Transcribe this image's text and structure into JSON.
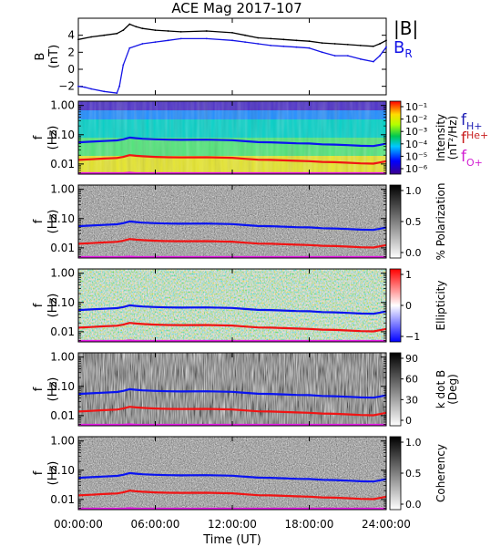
{
  "figure": {
    "title": "ACE Mag 2017-107"
  },
  "time_axis": {
    "label": "Time (UT)",
    "tick_labels": [
      "00:00:00",
      "06:00:00",
      "12:00:00",
      "18:00:00",
      "24:00:00"
    ],
    "tick_hours": [
      0,
      6,
      12,
      18,
      24
    ],
    "xlim_hours": [
      0,
      24
    ]
  },
  "freq_axis": {
    "label_line1": "f",
    "label_line2": "(Hz)",
    "tick_labels": [
      "1.00",
      "0.10",
      "0.01"
    ],
    "tick_values": [
      1.0,
      0.1,
      0.01
    ],
    "ylim_hz": [
      0.0045,
      1.4
    ],
    "scale": "log"
  },
  "legend": {
    "mag_total": "|B|",
    "mag_radial": "B",
    "mag_radial_sub": "R",
    "fh": "f",
    "fh_sub": "H+",
    "fhe": "f",
    "fhe_sub": "He+",
    "fo": "f",
    "fo_sub": "O+"
  },
  "colors": {
    "total": "#000000",
    "radial": "#1414e6",
    "fH": "#0a14f0",
    "fHe": "#f01414",
    "fO": "#e619e6",
    "legend_fh": "#1e1eb4",
    "legend_fhe": "#c81e1e",
    "legend_fo": "#d21ed2"
  },
  "panels": [
    {
      "key": "psd",
      "colorbar_label": "Intensity",
      "colorbar_label2": "(nT²/Hz)",
      "colorbar_ticks": [
        "10⁻¹",
        "10⁻²",
        "10⁻³",
        "10⁻⁴",
        "10⁻⁵",
        "10⁻⁶"
      ]
    },
    {
      "key": "pol",
      "colorbar_label": "% Polarization",
      "colorbar_label2": "",
      "colorbar_ticks": [
        "1.0",
        "0.5",
        "0.0"
      ]
    },
    {
      "key": "ell",
      "colorbar_label": "Ellipticity",
      "colorbar_label2": "",
      "colorbar_ticks": [
        "1",
        "0",
        "−1"
      ]
    },
    {
      "key": "kdb",
      "colorbar_label": "k dot B",
      "colorbar_label2": "(Deg)",
      "colorbar_ticks": [
        "90",
        "60",
        "30",
        "0"
      ]
    },
    {
      "key": "coh",
      "colorbar_label": "Coherency",
      "colorbar_label2": "",
      "colorbar_ticks": [
        "1.0",
        "0.5",
        "0.0"
      ]
    }
  ],
  "chart_data": [
    {
      "type": "line",
      "title": "ACE Mag 2017-107",
      "ylabel": "B (nT)",
      "ylim": [
        -3,
        6
      ],
      "yticks": [
        -2,
        0,
        2,
        4
      ],
      "xlim_hours": [
        0,
        24
      ],
      "series": [
        {
          "name": "|B|",
          "x": [
            0,
            1,
            2,
            3,
            3.5,
            4,
            4.5,
            5,
            6,
            7,
            8,
            10,
            12,
            13,
            14,
            15,
            16,
            17,
            18,
            19,
            20,
            21,
            22,
            23,
            23.5,
            24
          ],
          "y": [
            3.5,
            3.8,
            4.0,
            4.2,
            4.6,
            5.3,
            5.0,
            4.8,
            4.6,
            4.5,
            4.4,
            4.5,
            4.3,
            4.0,
            3.7,
            3.6,
            3.5,
            3.4,
            3.3,
            3.1,
            3.0,
            2.9,
            2.8,
            2.7,
            3.0,
            3.4
          ]
        },
        {
          "name": "B",
          "x": [
            0,
            0.5,
            1,
            2,
            3,
            3.2,
            3.5,
            4,
            5,
            6,
            7,
            8,
            10,
            12,
            13,
            14,
            15,
            16,
            17,
            18,
            19,
            20,
            21,
            22,
            23,
            23.5,
            24
          ],
          "y": [
            -2.0,
            -2.1,
            -2.3,
            -2.6,
            -2.8,
            -2.0,
            0.5,
            2.5,
            3.0,
            3.2,
            3.4,
            3.6,
            3.6,
            3.4,
            3.2,
            3.0,
            2.8,
            2.7,
            2.6,
            2.5,
            2.0,
            1.6,
            1.6,
            1.2,
            0.9,
            1.6,
            2.6
          ]
        }
      ]
    },
    {
      "type": "heatmap",
      "title": "",
      "ylabel": "f (Hz)",
      "yscale": "log",
      "ylim": [
        0.0045,
        1.4
      ],
      "xlim_hours": [
        0,
        24
      ],
      "spectrogram_panels": [
        "Intensity (nT²/Hz)",
        "% Polarization",
        "Ellipticity",
        "k dot B (Deg)",
        "Coherency"
      ],
      "colorbar_ranges": {
        "Intensity (nT²/Hz)": [
          1e-06,
          0.1
        ],
        "% Polarization": [
          0,
          1
        ],
        "Ellipticity": [
          -1,
          1
        ],
        "k dot B (Deg)": [
          0,
          90
        ],
        "Coherency": [
          0,
          1
        ]
      },
      "series": [
        {
          "name": "f",
          "x": [
            0,
            1,
            2,
            3,
            3.5,
            4,
            4.5,
            5,
            6,
            7,
            8,
            10,
            12,
            13,
            14,
            15,
            16,
            17,
            18,
            19,
            20,
            21,
            22,
            23,
            23.5,
            24
          ],
          "y": [
            0.055,
            0.058,
            0.061,
            0.064,
            0.07,
            0.08,
            0.076,
            0.073,
            0.07,
            0.068,
            0.067,
            0.068,
            0.065,
            0.06,
            0.056,
            0.055,
            0.053,
            0.051,
            0.05,
            0.047,
            0.046,
            0.044,
            0.042,
            0.041,
            0.045,
            0.05
          ]
        },
        {
          "name": "f",
          "x": [
            0,
            1,
            2,
            3,
            3.5,
            4,
            4.5,
            5,
            6,
            7,
            8,
            10,
            12,
            13,
            14,
            15,
            16,
            17,
            18,
            19,
            20,
            21,
            22,
            23,
            23.5,
            24
          ],
          "y": [
            0.0138,
            0.0145,
            0.0153,
            0.016,
            0.0175,
            0.02,
            0.019,
            0.0183,
            0.0175,
            0.017,
            0.0168,
            0.017,
            0.0163,
            0.015,
            0.014,
            0.0138,
            0.0133,
            0.0128,
            0.0125,
            0.0118,
            0.0115,
            0.011,
            0.0105,
            0.0103,
            0.0113,
            0.0125
          ]
        },
        {
          "name": "f",
          "x": [
            0,
            1,
            2,
            3,
            3.5,
            4,
            4.5,
            5,
            6,
            7,
            8,
            10,
            12,
            13,
            14,
            15,
            16,
            17,
            18,
            19,
            20,
            21,
            22,
            23,
            23.5,
            24
          ],
          "y": [
            0.00345,
            0.00363,
            0.0038,
            0.004,
            0.0044,
            0.005,
            0.0048,
            0.0046,
            0.0044,
            0.0043,
            0.0042,
            0.0043,
            0.0041,
            0.00375,
            0.0035,
            0.00345,
            0.0033,
            0.0032,
            0.0031,
            0.00295,
            0.0029,
            0.00275,
            0.0026,
            0.0026,
            0.0028,
            0.0031
          ]
        }
      ]
    }
  ]
}
